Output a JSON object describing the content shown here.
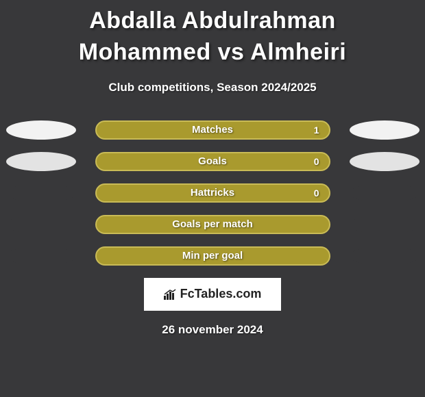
{
  "title": "Abdalla Abdulrahman Mohammed vs Almheiri",
  "subtitle": "Club competitions, Season 2024/2025",
  "colors": {
    "bar_fill": "#a99a2e",
    "bar_border": "#c9bb56",
    "oval_light": "#f2f2f2",
    "oval_dark": "#e3e3e3",
    "background": "#38383a"
  },
  "stats": [
    {
      "label": "Matches",
      "value": "1",
      "show_value": true,
      "left_oval": "light",
      "right_oval": "light"
    },
    {
      "label": "Goals",
      "value": "0",
      "show_value": true,
      "left_oval": "dark",
      "right_oval": "dark"
    },
    {
      "label": "Hattricks",
      "value": "0",
      "show_value": true,
      "left_oval": null,
      "right_oval": null
    },
    {
      "label": "Goals per match",
      "value": "",
      "show_value": false,
      "left_oval": null,
      "right_oval": null
    },
    {
      "label": "Min per goal",
      "value": "",
      "show_value": false,
      "left_oval": null,
      "right_oval": null
    }
  ],
  "footer": {
    "brand": "FcTables.com",
    "date": "26 november 2024"
  }
}
